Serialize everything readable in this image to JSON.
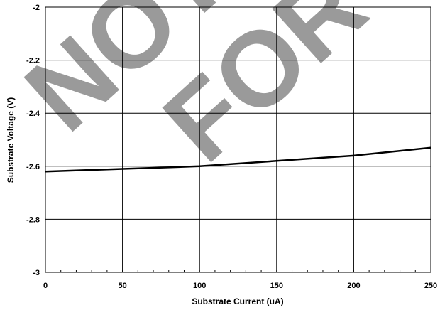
{
  "watermark": {
    "line1": "NOT",
    "line2": "FOR",
    "color": "#9a9a9a"
  },
  "chart_data": {
    "type": "line",
    "title": "",
    "xlabel": "Substrate Current (uA)",
    "ylabel": "Substrate Voltage (V)",
    "xlim": [
      0,
      250
    ],
    "ylim": [
      -3,
      -2
    ],
    "x_ticks": [
      0,
      50,
      100,
      150,
      200,
      250
    ],
    "y_ticks": [
      -3,
      -2.8,
      -2.6,
      -2.4,
      -2.2,
      -2
    ],
    "x_tick_labels": [
      "0",
      "50",
      "100",
      "150",
      "200",
      "250"
    ],
    "y_tick_labels": [
      "-3",
      "-2.8",
      "-2.6",
      "-2.4",
      "-2.2",
      "-2"
    ],
    "grid": true,
    "legend": "none",
    "series": [
      {
        "x": [
          0,
          50,
          100,
          150,
          200,
          250
        ],
        "y": [
          -2.62,
          -2.61,
          -2.6,
          -2.58,
          -2.56,
          -2.53
        ],
        "color": "#000000"
      }
    ]
  }
}
